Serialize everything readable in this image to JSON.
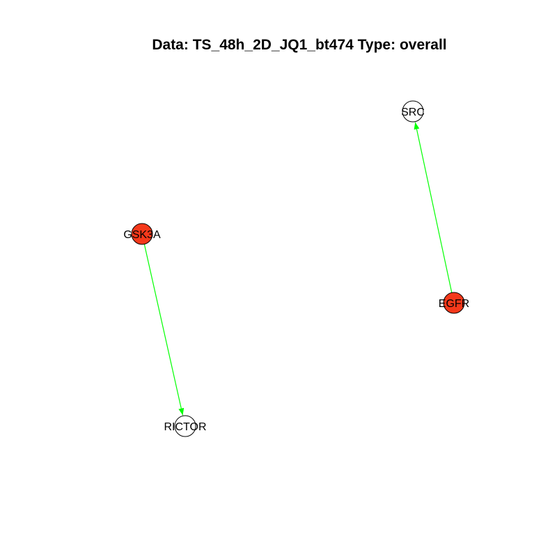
{
  "title": "Data: TS_48h_2D_JQ1_bt474 Type: overall",
  "colors": {
    "edge": "#00ff00",
    "node_highlight": "#f5391b",
    "node_default": "#ffffff",
    "node_border": "#000000",
    "text": "#000000"
  },
  "nodes": [
    {
      "id": "SRC",
      "label": "SRC",
      "highlighted": false
    },
    {
      "id": "GSK3A",
      "label": "GSK3A",
      "highlighted": true
    },
    {
      "id": "EGFR",
      "label": "EGFR",
      "highlighted": true
    },
    {
      "id": "RICTOR",
      "label": "RICTOR",
      "highlighted": false
    }
  ],
  "edges": [
    {
      "from": "GSK3A",
      "to": "RICTOR",
      "directed": true
    },
    {
      "from": "EGFR",
      "to": "SRC",
      "directed": true
    }
  ]
}
